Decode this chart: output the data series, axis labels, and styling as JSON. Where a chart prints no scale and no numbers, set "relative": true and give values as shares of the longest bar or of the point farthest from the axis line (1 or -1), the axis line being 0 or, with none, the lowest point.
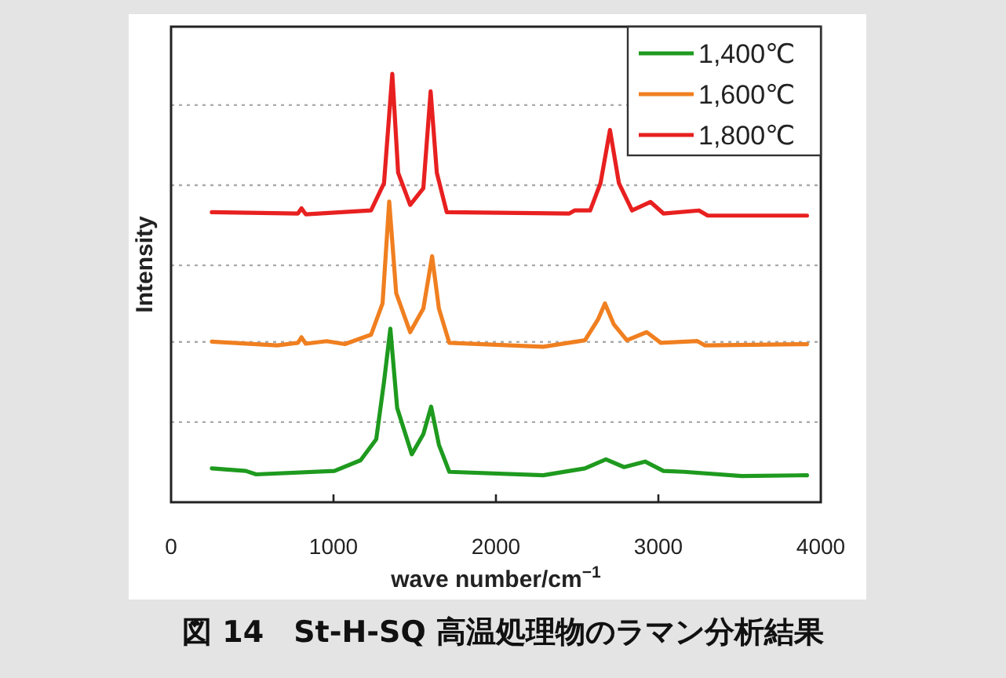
{
  "chart_data": {
    "type": "line",
    "relative": true,
    "xlabel": "wave number/cm$^{−1}$",
    "ylabel": "Intensity",
    "xlim": [
      0,
      4000
    ],
    "xticks": [
      0,
      1000,
      2000,
      3000,
      4000
    ],
    "legend": "top right",
    "marker": "none",
    "line_style": "solid",
    "grid": false,
    "annotations": [
      "図 14　St-H-SQ 高温処理物のラマン分析結果"
    ],
    "ref_lines": [
      {
        "axis": "y",
        "value": 0.187,
        "color": "#aaaaaa",
        "line_style": "dotted"
      },
      {
        "axis": "y",
        "value": 0.374,
        "color": "#aaaaaa",
        "line_style": "dotted"
      },
      {
        "axis": "y",
        "value": 0.553,
        "color": "#aaaaaa",
        "line_style": "dotted"
      },
      {
        "axis": "y",
        "value": 0.74,
        "color": "#aaaaaa",
        "line_style": "dotted"
      },
      {
        "axis": "y",
        "value": 0.927,
        "color": "#aaaaaa",
        "line_style": "dotted"
      }
    ],
    "series": [
      {
        "name": "1,400℃",
        "color": "#1e9a1e",
        "x": [
          251,
          460,
          524,
          1006,
          1167,
          1263,
          1311,
          1350,
          1392,
          1482,
          1553,
          1601,
          1649,
          1713,
          2291,
          2548,
          2677,
          2789,
          2918,
          3031,
          3159,
          3513,
          3915
        ],
        "values": [
          0.079,
          0.073,
          0.065,
          0.073,
          0.098,
          0.147,
          0.281,
          0.405,
          0.22,
          0.112,
          0.159,
          0.223,
          0.134,
          0.071,
          0.063,
          0.079,
          0.1,
          0.082,
          0.095,
          0.073,
          0.071,
          0.061,
          0.063
        ]
      },
      {
        "name": "1,600℃",
        "color": "#f07f20",
        "x": [
          251,
          653,
          781,
          803,
          829,
          958,
          1070,
          1231,
          1302,
          1343,
          1386,
          1472,
          1553,
          1607,
          1649,
          1713,
          2291,
          2548,
          2629,
          2671,
          2726,
          2806,
          2928,
          3015,
          3240,
          3288,
          3915
        ],
        "values": [
          0.375,
          0.366,
          0.372,
          0.385,
          0.37,
          0.376,
          0.369,
          0.391,
          0.464,
          0.702,
          0.488,
          0.397,
          0.452,
          0.574,
          0.452,
          0.372,
          0.363,
          0.378,
          0.427,
          0.464,
          0.415,
          0.378,
          0.397,
          0.372,
          0.376,
          0.366,
          0.369
        ]
      },
      {
        "name": "1,800℃",
        "color": "#e82020",
        "x": [
          251,
          781,
          803,
          829,
          1231,
          1311,
          1362,
          1398,
          1472,
          1553,
          1598,
          1636,
          1697,
          2452,
          2484,
          2580,
          2644,
          2702,
          2757,
          2838,
          2951,
          3031,
          3250,
          3304,
          3915
        ],
        "values": [
          0.677,
          0.674,
          0.686,
          0.672,
          0.681,
          0.745,
          1.0,
          0.769,
          0.694,
          0.733,
          0.959,
          0.769,
          0.677,
          0.674,
          0.681,
          0.681,
          0.745,
          0.869,
          0.745,
          0.681,
          0.701,
          0.674,
          0.681,
          0.669,
          0.669
        ]
      }
    ]
  }
}
